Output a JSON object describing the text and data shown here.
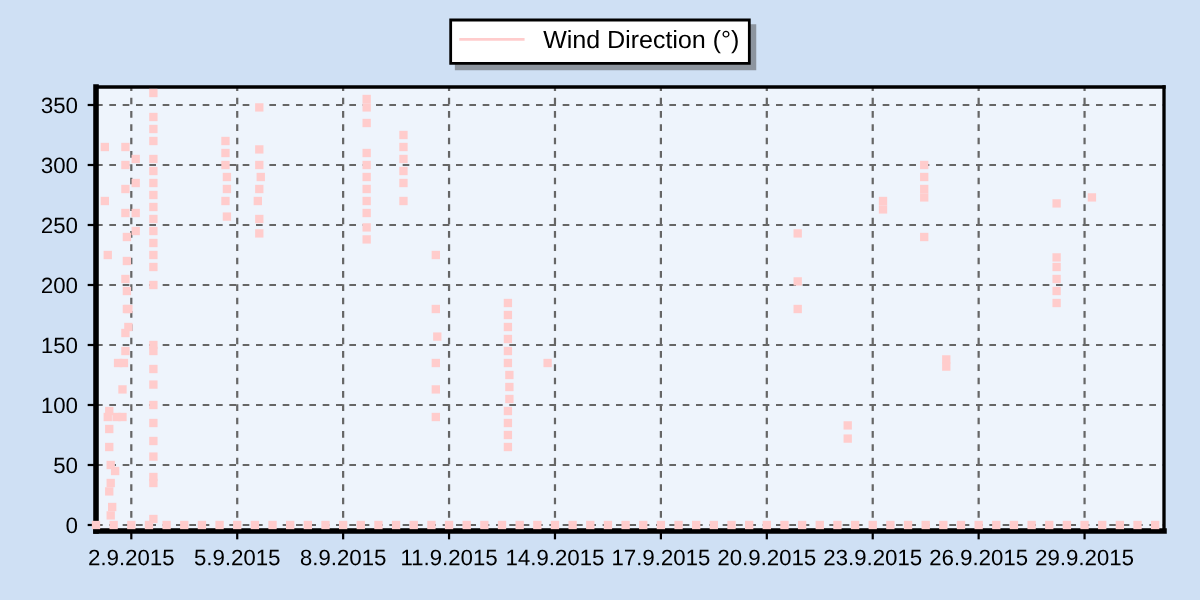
{
  "chart_data": {
    "type": "scatter",
    "xlim": [
      "2015-09-01T00:00",
      "2015-10-01T06:00"
    ],
    "xticks": [
      {
        "value": "2015-09-02",
        "label": "2.9.2015"
      },
      {
        "value": "2015-09-05",
        "label": "5.9.2015"
      },
      {
        "value": "2015-09-08",
        "label": "8.9.2015"
      },
      {
        "value": "2015-09-11",
        "label": "11.9.2015"
      },
      {
        "value": "2015-09-14",
        "label": "14.9.2015"
      },
      {
        "value": "2015-09-17",
        "label": "17.9.2015"
      },
      {
        "value": "2015-09-20",
        "label": "20.9.2015"
      },
      {
        "value": "2015-09-23",
        "label": "23.9.2015"
      },
      {
        "value": "2015-09-26",
        "label": "26.9.2015"
      },
      {
        "value": "2015-09-29",
        "label": "29.9.2015"
      }
    ],
    "ylim": [
      -5,
      365
    ],
    "yticks": [
      0,
      50,
      100,
      150,
      200,
      250,
      300,
      350
    ],
    "grid": true,
    "legend": "top",
    "marker": "square",
    "series": [
      {
        "name": "Wind Direction (°)",
        "color": "#ffcccc",
        "x": [
          "2015-09-01T00:00",
          "2015-09-01T12:00",
          "2015-09-02T00:00",
          "2015-09-02T12:00",
          "2015-09-03T00:00",
          "2015-09-03T12:00",
          "2015-09-04T00:00",
          "2015-09-04T12:00",
          "2015-09-05T00:00",
          "2015-09-05T12:00",
          "2015-09-06T00:00",
          "2015-09-06T12:00",
          "2015-09-07T00:00",
          "2015-09-07T12:00",
          "2015-09-08T00:00",
          "2015-09-08T12:00",
          "2015-09-09T00:00",
          "2015-09-09T12:00",
          "2015-09-10T00:00",
          "2015-09-10T12:00",
          "2015-09-11T00:00",
          "2015-09-11T12:00",
          "2015-09-12T00:00",
          "2015-09-12T12:00",
          "2015-09-13T00:00",
          "2015-09-13T12:00",
          "2015-09-14T00:00",
          "2015-09-14T12:00",
          "2015-09-15T00:00",
          "2015-09-15T12:00",
          "2015-09-16T00:00",
          "2015-09-16T12:00",
          "2015-09-17T00:00",
          "2015-09-17T12:00",
          "2015-09-18T00:00",
          "2015-09-18T12:00",
          "2015-09-19T00:00",
          "2015-09-19T12:00",
          "2015-09-20T00:00",
          "2015-09-20T12:00",
          "2015-09-21T00:00",
          "2015-09-21T12:00",
          "2015-09-22T00:00",
          "2015-09-22T12:00",
          "2015-09-23T00:00",
          "2015-09-23T12:00",
          "2015-09-24T00:00",
          "2015-09-24T12:00",
          "2015-09-25T00:00",
          "2015-09-25T12:00",
          "2015-09-26T00:00",
          "2015-09-26T12:00",
          "2015-09-27T00:00",
          "2015-09-27T12:00",
          "2015-09-28T00:00",
          "2015-09-28T12:00",
          "2015-09-29T00:00",
          "2015-09-29T12:00",
          "2015-09-30T00:00",
          "2015-09-30T12:00",
          "2015-10-01T00:00",
          "2015-09-01T06:00",
          "2015-09-01T06:00",
          "2015-09-01T08:00",
          "2015-09-01T08:00",
          "2015-09-01T09:00",
          "2015-09-01T09:00",
          "2015-09-01T09:00",
          "2015-09-01T10:00",
          "2015-09-01T10:00",
          "2015-09-01T09:00",
          "2015-09-01T11:00",
          "2015-09-01T10:00",
          "2015-09-01T13:00",
          "2015-09-01T14:00",
          "2015-09-01T15:00",
          "2015-09-01T20:00",
          "2015-09-01T20:00",
          "2015-09-01T20:00",
          "2015-09-01T20:00",
          "2015-09-01T21:00",
          "2015-09-01T21:00",
          "2015-09-01T20:00",
          "2015-09-01T21:00",
          "2015-09-01T21:00",
          "2015-09-01T20:00",
          "2015-09-01T20:00",
          "2015-09-01T19:00",
          "2015-09-01T18:00",
          "2015-09-01T22:00",
          "2015-09-01T22:00",
          "2015-09-02T03:00",
          "2015-09-02T03:00",
          "2015-09-02T03:00",
          "2015-09-02T03:00",
          "2015-09-01T18:00",
          "2015-09-02T15:00",
          "2015-09-02T15:00",
          "2015-09-02T15:00",
          "2015-09-02T15:00",
          "2015-09-02T15:00",
          "2015-09-02T15:00",
          "2015-09-02T15:00",
          "2015-09-02T15:00",
          "2015-09-02T15:00",
          "2015-09-02T15:00",
          "2015-09-02T15:00",
          "2015-09-02T15:00",
          "2015-09-02T15:00",
          "2015-09-02T15:00",
          "2015-09-02T15:00",
          "2015-09-02T15:00",
          "2015-09-02T15:00",
          "2015-09-02T15:00",
          "2015-09-02T15:00",
          "2015-09-02T15:00",
          "2015-09-02T15:00",
          "2015-09-02T15:00",
          "2015-09-02T15:00",
          "2015-09-02T15:00",
          "2015-09-02T15:00",
          "2015-09-02T15:00",
          "2015-09-04T16:00",
          "2015-09-04T16:00",
          "2015-09-04T16:00",
          "2015-09-04T17:00",
          "2015-09-04T17:00",
          "2015-09-04T16:00",
          "2015-09-04T17:00",
          "2015-09-05T15:00",
          "2015-09-05T15:00",
          "2015-09-05T15:00",
          "2015-09-05T16:00",
          "2015-09-05T15:00",
          "2015-09-05T14:00",
          "2015-09-05T15:00",
          "2015-09-05T15:00",
          "2015-09-08T16:00",
          "2015-09-08T16:00",
          "2015-09-08T16:00",
          "2015-09-08T16:00",
          "2015-09-08T16:00",
          "2015-09-08T16:00",
          "2015-09-08T16:00",
          "2015-09-08T16:00",
          "2015-09-08T16:00",
          "2015-09-08T16:00",
          "2015-09-08T16:00",
          "2015-09-09T17:00",
          "2015-09-09T17:00",
          "2015-09-09T17:00",
          "2015-09-09T17:00",
          "2015-09-09T17:00",
          "2015-09-09T17:00",
          "2015-09-10T15:00",
          "2015-09-10T15:00",
          "2015-09-10T16:00",
          "2015-09-10T15:00",
          "2015-09-10T15:00",
          "2015-09-10T15:00",
          "2015-09-12T16:00",
          "2015-09-12T16:00",
          "2015-09-12T16:00",
          "2015-09-12T16:00",
          "2015-09-12T16:00",
          "2015-09-12T16:00",
          "2015-09-12T17:00",
          "2015-09-12T17:00",
          "2015-09-12T17:00",
          "2015-09-12T16:00",
          "2015-09-12T16:00",
          "2015-09-12T16:00",
          "2015-09-12T16:00",
          "2015-09-13T19:00",
          "2015-09-20T21:00",
          "2015-09-20T21:00",
          "2015-09-20T21:00",
          "2015-09-22T07:00",
          "2015-09-22T07:00",
          "2015-09-23T07:00",
          "2015-09-23T07:00",
          "2015-09-24T11:00",
          "2015-09-24T11:00",
          "2015-09-24T11:00",
          "2015-09-24T11:00",
          "2015-09-24T11:00",
          "2015-09-25T02:00",
          "2015-09-25T02:00",
          "2015-09-28T05:00",
          "2015-09-28T05:00",
          "2015-09-28T05:00",
          "2015-09-28T05:00",
          "2015-09-28T05:00",
          "2015-09-28T05:00",
          "2015-09-29T05:00"
        ],
        "values": [
          0,
          0,
          0,
          0,
          0,
          0,
          0,
          0,
          0,
          0,
          0,
          0,
          0,
          0,
          0,
          0,
          0,
          0,
          0,
          0,
          0,
          0,
          0,
          0,
          0,
          0,
          0,
          0,
          0,
          0,
          0,
          0,
          0,
          0,
          0,
          0,
          0,
          0,
          0,
          0,
          0,
          0,
          0,
          0,
          0,
          0,
          0,
          0,
          0,
          0,
          0,
          0,
          0,
          0,
          0,
          0,
          0,
          0,
          0,
          0,
          0,
          315,
          270,
          225,
          90,
          95,
          80,
          65,
          50,
          35,
          28,
          15,
          8,
          45,
          90,
          135,
          315,
          300,
          280,
          260,
          240,
          220,
          205,
          195,
          180,
          160,
          145,
          135,
          113,
          180,
          165,
          305,
          285,
          260,
          245,
          90,
          360,
          340,
          330,
          320,
          305,
          295,
          285,
          275,
          265,
          255,
          245,
          235,
          225,
          215,
          200,
          150,
          145,
          130,
          117,
          100,
          85,
          70,
          57,
          40,
          35,
          5,
          320,
          310,
          300,
          290,
          280,
          270,
          257,
          348,
          313,
          300,
          290,
          280,
          270,
          255,
          243,
          355,
          348,
          335,
          310,
          300,
          290,
          280,
          270,
          260,
          248,
          238,
          325,
          315,
          305,
          295,
          285,
          270,
          225,
          180,
          157,
          135,
          113,
          90,
          185,
          175,
          165,
          155,
          145,
          135,
          125,
          115,
          105,
          95,
          85,
          75,
          65,
          135,
          243,
          203,
          180,
          83,
          72,
          270,
          263,
          300,
          290,
          280,
          273,
          240,
          138,
          132,
          268,
          223,
          215,
          205,
          195,
          185,
          273
        ]
      }
    ]
  }
}
